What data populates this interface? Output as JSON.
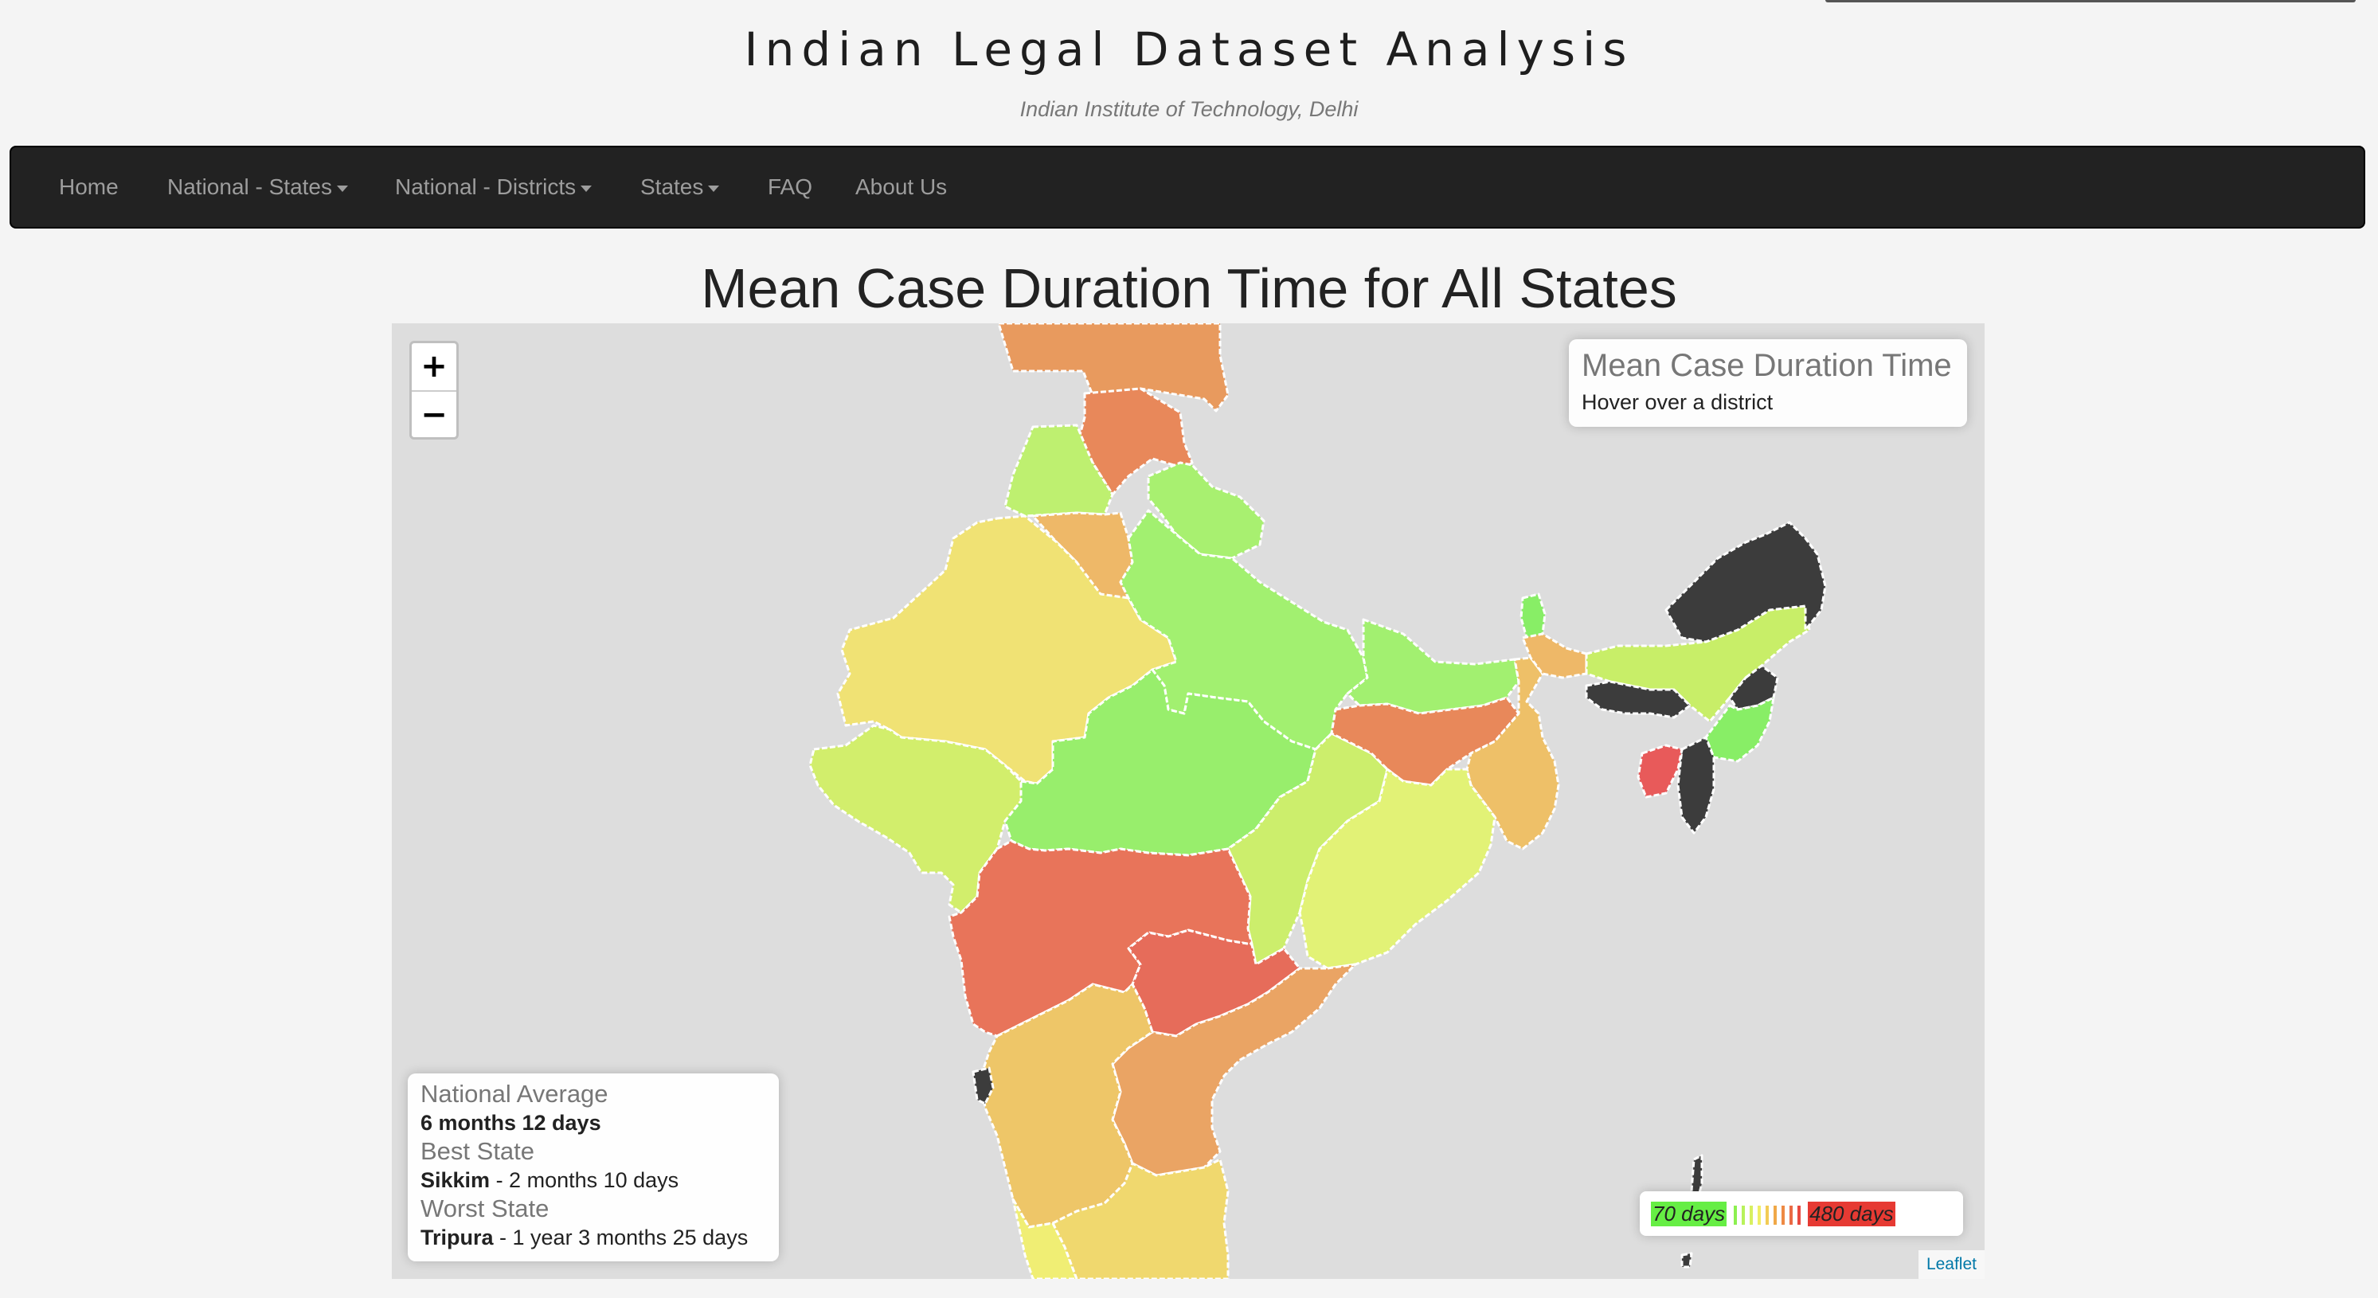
{
  "header": {
    "title": "Indian Legal Dataset Analysis",
    "subtitle": "Indian Institute of Technology, Delhi"
  },
  "nav": {
    "items": [
      {
        "label": "Home",
        "dropdown": false
      },
      {
        "label": "National - States",
        "dropdown": true
      },
      {
        "label": "National - Districts",
        "dropdown": true
      },
      {
        "label": "States",
        "dropdown": true
      },
      {
        "label": "FAQ",
        "dropdown": false
      },
      {
        "label": "About Us",
        "dropdown": false
      }
    ]
  },
  "main": {
    "title": "Mean Case Duration Time for All States"
  },
  "map": {
    "zoom_in": "+",
    "zoom_out": "−",
    "info": {
      "title": "Mean Case Duration Time",
      "hint": "Hover over a district"
    },
    "summary": {
      "national_label": "National Average",
      "national_value": "6 months 12 days",
      "best_label": "Best State",
      "best_state": "Sikkim",
      "best_value": " - 2 months 10 days",
      "worst_label": "Worst State",
      "worst_state": "Tripura",
      "worst_value": " - 1 year 3 months 25 days"
    },
    "legend": {
      "min_label": "70 days",
      "max_label": "480 days",
      "colors": [
        "#66ee44",
        "#8cf050",
        "#b8f25a",
        "#d8f060",
        "#f0ee66",
        "#f2cc55",
        "#f0a848",
        "#ee8a44",
        "#ea6a44",
        "#e84a40",
        "#e63a33"
      ]
    },
    "attribution": "Leaflet",
    "colors": {
      "no_data": "#3c3c3c",
      "sea": "#dddddd"
    }
  }
}
